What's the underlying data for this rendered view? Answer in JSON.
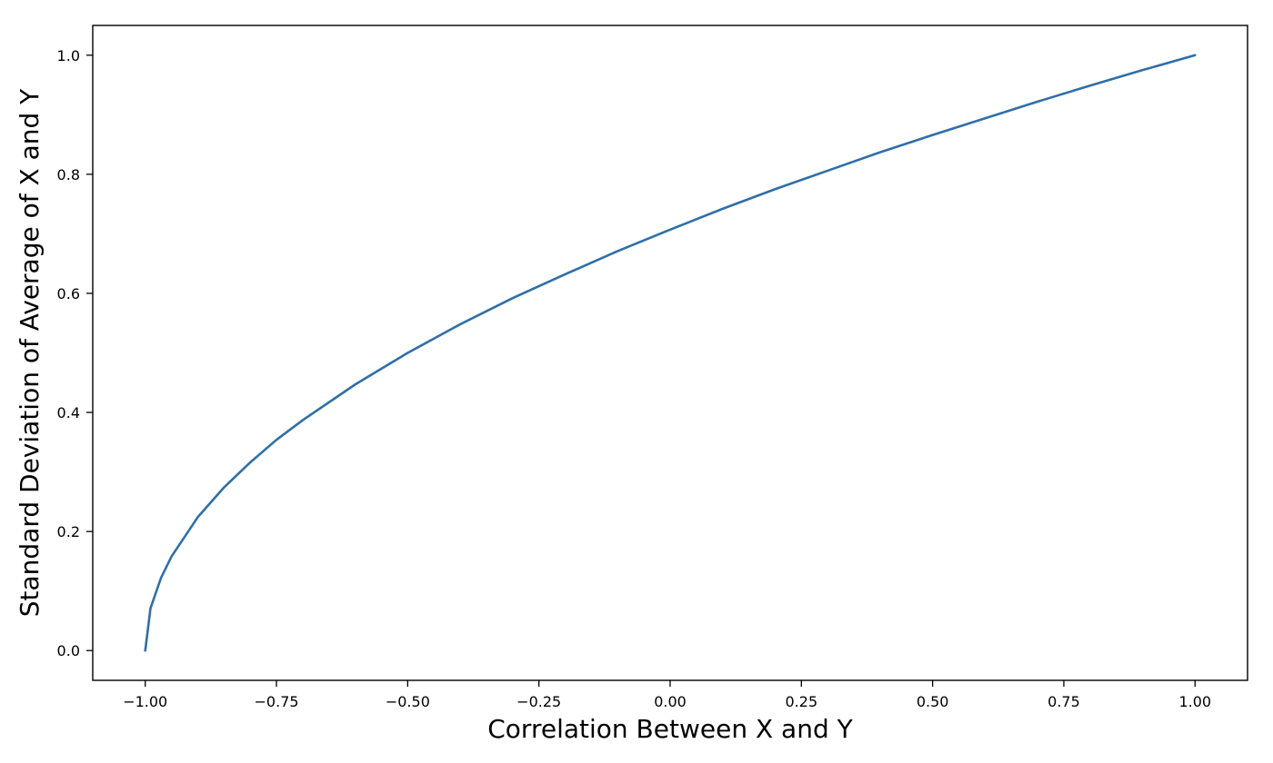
{
  "chart_data": {
    "type": "line",
    "title": "",
    "xlabel": "Correlation Between X and Y",
    "ylabel": "Standard Deviation of Average of X and Y",
    "xlim": [
      -1.1,
      1.1
    ],
    "ylim": [
      -0.05,
      1.05
    ],
    "xticks": [
      -1.0,
      -0.75,
      -0.5,
      -0.25,
      0.0,
      0.25,
      0.5,
      0.75,
      1.0
    ],
    "xtick_labels": [
      "−1.00",
      "−0.75",
      "−0.50",
      "−0.25",
      "0.00",
      "0.25",
      "0.50",
      "0.75",
      "1.00"
    ],
    "yticks": [
      0.0,
      0.2,
      0.4,
      0.6,
      0.8,
      1.0
    ],
    "ytick_labels": [
      "0.0",
      "0.2",
      "0.4",
      "0.6",
      "0.8",
      "1.0"
    ],
    "grid": false,
    "legend": "none",
    "series": [
      {
        "color": "#2f6fa8",
        "x": [
          -1.0,
          -0.99,
          -0.97,
          -0.95,
          -0.9,
          -0.85,
          -0.8,
          -0.75,
          -0.7,
          -0.6,
          -0.5,
          -0.4,
          -0.3,
          -0.2,
          -0.1,
          0.0,
          0.1,
          0.2,
          0.3,
          0.4,
          0.5,
          0.6,
          0.7,
          0.8,
          0.9,
          1.0
        ],
        "y": [
          0.0,
          0.071,
          0.122,
          0.158,
          0.224,
          0.274,
          0.316,
          0.354,
          0.387,
          0.447,
          0.5,
          0.548,
          0.592,
          0.632,
          0.671,
          0.707,
          0.742,
          0.775,
          0.806,
          0.837,
          0.866,
          0.894,
          0.922,
          0.949,
          0.975,
          1.0
        ]
      }
    ]
  }
}
